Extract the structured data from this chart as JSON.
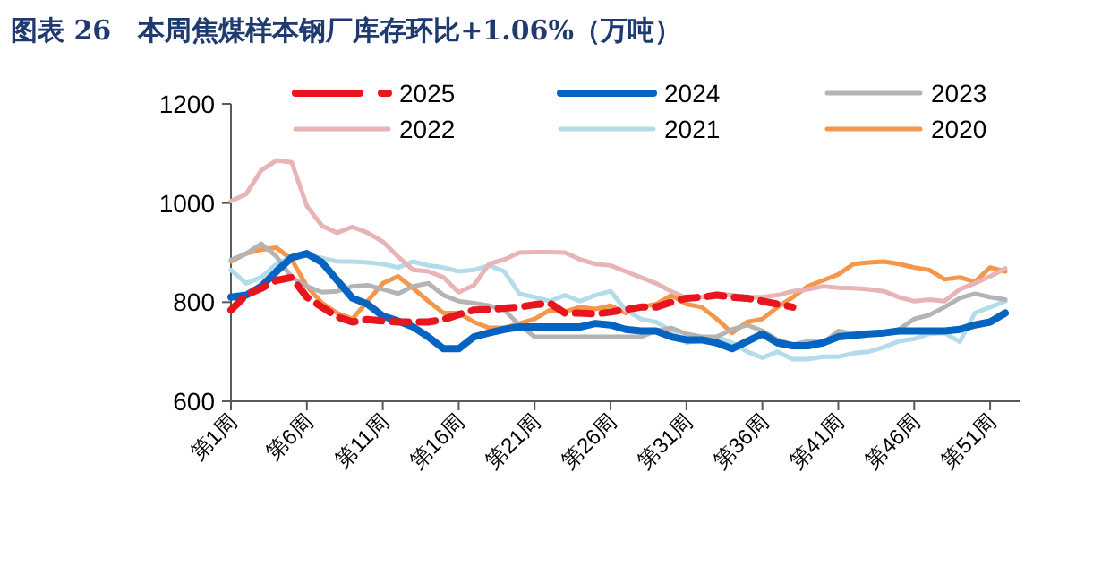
{
  "chart_data": {
    "type": "line",
    "title": "图表 26　本周焦煤样本钢厂库存环比+1.06%（万吨）",
    "categories": [
      "第1周",
      null,
      null,
      null,
      null,
      "第6周",
      null,
      null,
      null,
      null,
      "第11周",
      null,
      null,
      null,
      null,
      "第16周",
      null,
      null,
      null,
      null,
      "第21周",
      null,
      null,
      null,
      null,
      "第26周",
      null,
      null,
      null,
      null,
      "第31周",
      null,
      null,
      null,
      null,
      "第36周",
      null,
      null,
      null,
      null,
      "第41周",
      null,
      null,
      null,
      null,
      "第46周",
      null,
      null,
      null,
      null,
      "第51周",
      null
    ],
    "ylim": [
      600,
      1200
    ],
    "yticks": [
      600,
      800,
      1000,
      1200
    ],
    "grid": false,
    "legend": "top",
    "series": [
      {
        "name": "2025",
        "color": "#e8141e",
        "line_style": "dashed",
        "values": [
          784,
          814,
          828,
          844,
          850,
          810,
          790,
          770,
          760,
          765,
          762,
          760,
          760,
          760,
          765,
          775,
          784,
          785,
          788,
          790,
          795,
          798,
          778,
          778,
          776,
          780,
          785,
          790,
          790,
          800,
          808,
          810,
          814,
          810,
          808,
          802,
          796,
          790,
          null,
          null,
          null,
          null,
          null,
          null,
          null,
          null,
          null,
          null,
          null,
          null,
          null,
          null
        ]
      },
      {
        "name": "2024",
        "color": "#0563c1",
        "line_style": "solid",
        "values": [
          810,
          814,
          832,
          862,
          890,
          898,
          880,
          844,
          808,
          796,
          772,
          762,
          750,
          730,
          706,
          706,
          730,
          738,
          745,
          750,
          750,
          750,
          750,
          750,
          757,
          754,
          745,
          742,
          742,
          730,
          724,
          724,
          718,
          706,
          721,
          736,
          718,
          712,
          712,
          718,
          730,
          733,
          736,
          738,
          742,
          742,
          742,
          742,
          745,
          754,
          760,
          778
        ]
      },
      {
        "name": "2023",
        "color": "#b4b4b4",
        "line_style": "solid",
        "values": [
          885,
          898,
          918,
          892,
          850,
          832,
          820,
          822,
          832,
          834,
          826,
          817,
          832,
          838,
          814,
          802,
          798,
          793,
          784,
          754,
          730,
          730,
          730,
          730,
          730,
          730,
          730,
          730,
          742,
          748,
          736,
          730,
          730,
          745,
          754,
          742,
          724,
          714,
          721,
          718,
          742,
          736,
          738,
          738,
          745,
          766,
          774,
          790,
          808,
          817,
          810,
          805
        ]
      },
      {
        "name": "2022",
        "color": "#e8b4b6",
        "line_style": "solid",
        "values": [
          1004,
          1018,
          1066,
          1086,
          1082,
          994,
          954,
          940,
          952,
          940,
          922,
          892,
          865,
          862,
          850,
          820,
          834,
          877,
          886,
          900,
          901,
          901,
          900,
          886,
          877,
          874,
          862,
          850,
          838,
          822,
          808,
          810,
          817,
          814,
          810,
          810,
          814,
          822,
          826,
          832,
          829,
          828,
          826,
          822,
          810,
          802,
          805,
          802,
          826,
          838,
          852,
          868
        ]
      },
      {
        "name": "2021",
        "color": "#b4dce8",
        "line_style": "solid",
        "values": [
          865,
          838,
          850,
          877,
          892,
          894,
          889,
          882,
          882,
          880,
          877,
          870,
          882,
          874,
          870,
          862,
          865,
          874,
          862,
          817,
          810,
          802,
          814,
          802,
          814,
          822,
          784,
          766,
          760,
          742,
          718,
          724,
          730,
          718,
          700,
          688,
          700,
          685,
          685,
          690,
          690,
          697,
          700,
          709,
          721,
          726,
          736,
          738,
          720,
          778,
          790,
          802
        ]
      },
      {
        "name": "2020",
        "color": "#f5964b",
        "line_style": "solid",
        "values": [
          882,
          898,
          906,
          910,
          886,
          832,
          798,
          778,
          766,
          802,
          838,
          852,
          828,
          802,
          778,
          778,
          760,
          748,
          748,
          757,
          766,
          784,
          781,
          790,
          786,
          793,
          778,
          790,
          796,
          814,
          796,
          790,
          766,
          738,
          760,
          766,
          790,
          810,
          832,
          844,
          856,
          877,
          880,
          882,
          877,
          870,
          865,
          846,
          850,
          841,
          870,
          862
        ]
      }
    ]
  }
}
